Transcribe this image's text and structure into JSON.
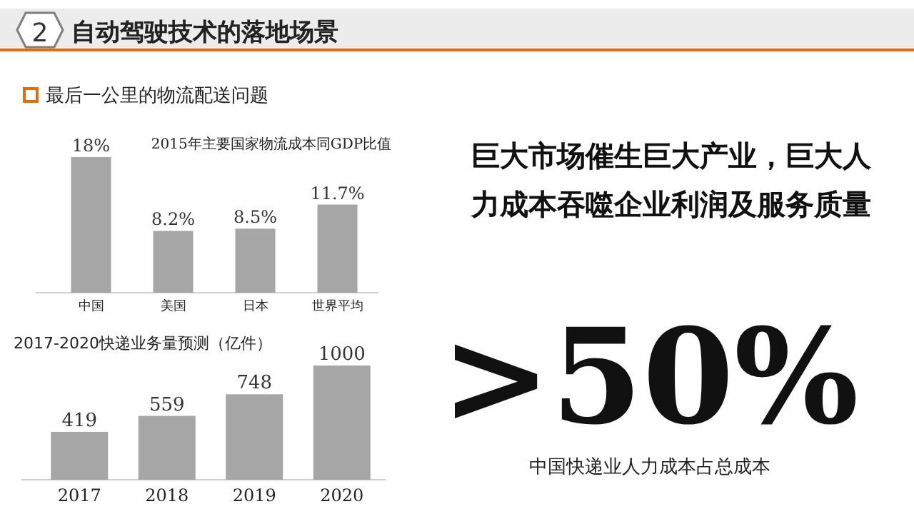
{
  "chart_data": [
    {
      "type": "other",
      "title": "自动驾驶技术的落地场景",
      "annotations": [
        "2",
        "最后一公里的物流配送问题",
        "巨大市场催生巨大产业，巨大人",
        "力成本吞噬企业利润及服务质量",
        ">50%",
        "中国快递业人力成本占总成本"
      ]
    },
    {
      "type": "bar",
      "title": "2015年主要国家物流成本同GDP比值",
      "categories": [
        "中国",
        "美国",
        "日本",
        "世界平均"
      ],
      "values": [
        18,
        8.2,
        8.5,
        11.7
      ],
      "value_labels": [
        "18%",
        "8.2%",
        "8.5%",
        "11.7%"
      ],
      "color": "#a6a6a6"
    },
    {
      "type": "bar",
      "title": "2017-2020快递业务量预测（亿件）",
      "categories": [
        "2017",
        "2018",
        "2019",
        "2020"
      ],
      "values": [
        419,
        559,
        748,
        1000
      ],
      "data_labels": true,
      "color": "#a6a6a6"
    }
  ]
}
